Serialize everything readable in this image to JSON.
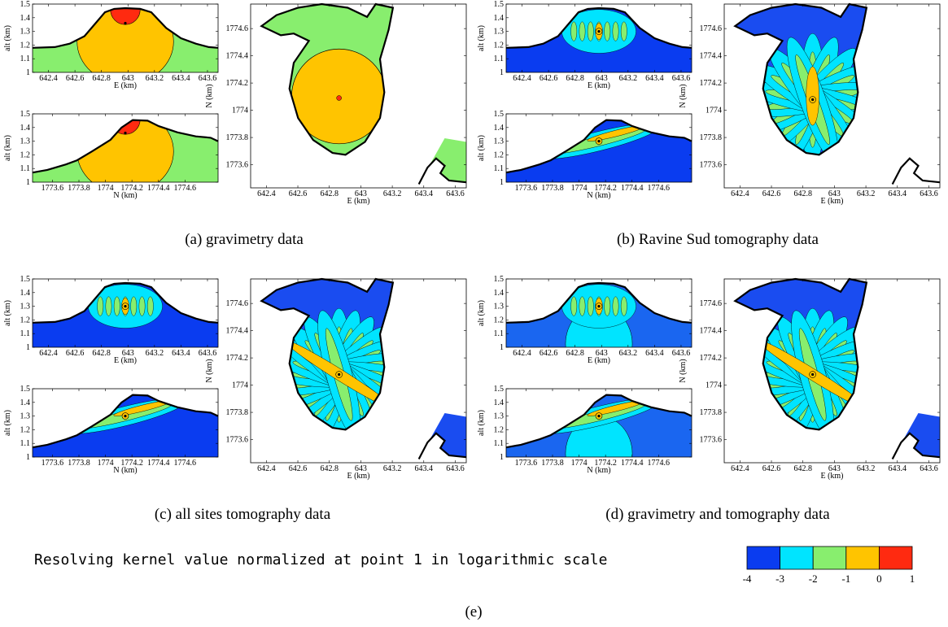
{
  "chart_data": {
    "type": "heatmap",
    "panels": [
      {
        "caption": "(a)  gravimetry data",
        "variant": "grav"
      },
      {
        "caption": "(b)  Ravine Sud tomography data",
        "variant": "ravine"
      },
      {
        "caption": "(c)  all sites tomography data",
        "variant": "allsites"
      },
      {
        "caption": "(d)  gravimetry and tomography data",
        "variant": "gravtomo"
      }
    ],
    "profile_E": {
      "xlabel": "E (km)",
      "ylabel": "alt (km)",
      "xlim": [
        642.28,
        643.68
      ],
      "ylim": [
        1,
        1.5
      ],
      "xticks": [
        "642.4",
        "642.6",
        "642.8",
        "643",
        "643.2",
        "643.4",
        "643.6"
      ],
      "yticks": [
        "1",
        "1.1",
        "1.2",
        "1.3",
        "1.4",
        "1.5"
      ]
    },
    "profile_N": {
      "xlabel": "N (km)",
      "ylabel": "alt (km)",
      "xlim": [
        1773.45,
        1774.85
      ],
      "ylim": [
        1,
        1.5
      ],
      "xticks": [
        "1773.6",
        "1773.8",
        "1774",
        "1774.2",
        "1774.4",
        "1774.6"
      ],
      "yticks": [
        "1",
        "1.1",
        "1.2",
        "1.3",
        "1.4",
        "1.5"
      ]
    },
    "map": {
      "xlabel": "E (km)",
      "ylabel": "N (km)",
      "xlim": [
        642.3,
        643.67
      ],
      "ylim": [
        1773.43,
        1774.78
      ],
      "xticks": [
        "642.4",
        "642.6",
        "642.8",
        "643",
        "643.2",
        "643.4",
        "643.6"
      ],
      "yticks": [
        "1773.6",
        "1773.8",
        "1774",
        "1774.2",
        "1774.4",
        "1774.6"
      ]
    },
    "colorbar": {
      "title": "Resolving kernel value normalized at point 1 in logarithmic  scale",
      "bins": [
        {
          "from": -4,
          "to": -3,
          "color": "#0a3cf0"
        },
        {
          "from": -3,
          "to": -2,
          "color": "#00e4ff"
        },
        {
          "from": -2,
          "to": -1,
          "color": "#88ee6e"
        },
        {
          "from": -1,
          "to": 0,
          "color": "#ffc400"
        },
        {
          "from": 0,
          "to": 1,
          "color": "#ff2a10"
        }
      ],
      "tick_labels": [
        "-4",
        "-3",
        "-2",
        "-1",
        "0",
        "1"
      ]
    },
    "footer_label": "(e)"
  }
}
